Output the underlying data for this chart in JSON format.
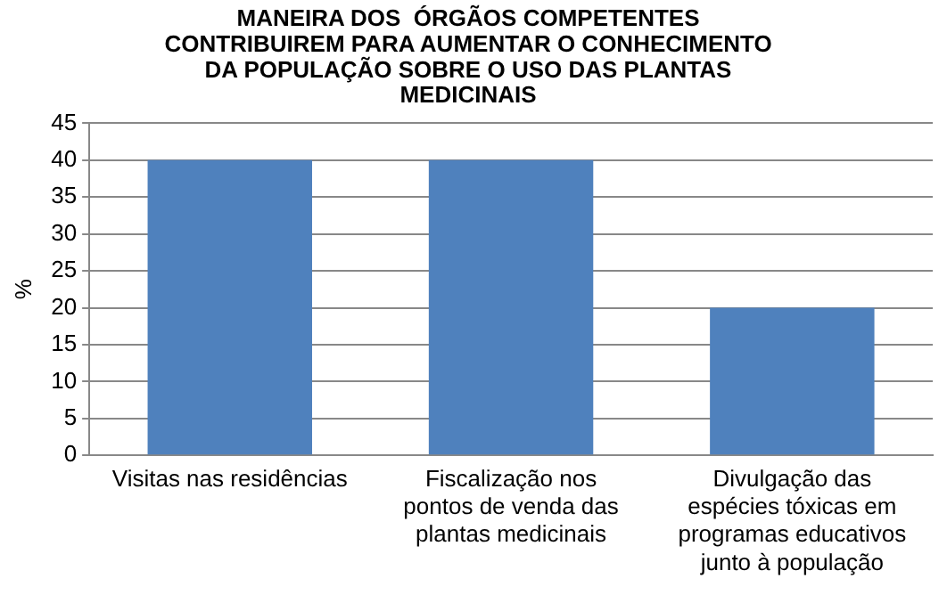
{
  "chart_data": {
    "type": "bar",
    "title": "MANEIRA DOS  ÓRGÃOS COMPETENTES CONTRIBUIREM PARA AUMENTAR O CONHECIMENTO DA POPULAÇÃO SOBRE O USO DAS PLANTAS MEDICINAIS",
    "ylabel": "%",
    "categories": [
      "Visitas nas residências",
      "Fiscalização nos pontos de venda das plantas medicinais",
      "Divulgação das espécies tóxicas em programas educativos junto à população"
    ],
    "values": [
      40,
      40,
      20
    ],
    "color": "#4f81bd",
    "ylim": [
      0,
      45
    ],
    "yticks": [
      0,
      5,
      10,
      15,
      20,
      25,
      30,
      35,
      40,
      45
    ],
    "grid": "y",
    "legend": false
  }
}
